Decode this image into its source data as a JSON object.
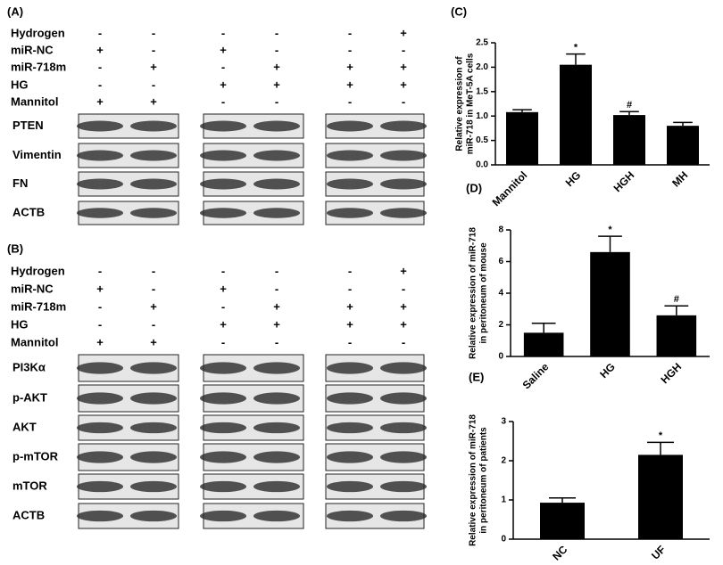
{
  "blots": [
    {
      "label": "(A)",
      "treatments": [
        {
          "name": "Hydrogen",
          "signs": [
            "-",
            "-",
            "-",
            "-",
            "-",
            "+"
          ]
        },
        {
          "name": "miR-NC",
          "signs": [
            "+",
            "-",
            "+",
            "-",
            "-",
            "-"
          ]
        },
        {
          "name": "miR-718m",
          "signs": [
            "-",
            "+",
            "-",
            "+",
            "+",
            "+"
          ]
        },
        {
          "name": "HG",
          "signs": [
            "-",
            "-",
            "+",
            "+",
            "+",
            "+"
          ]
        },
        {
          "name": "Mannitol",
          "signs": [
            "+",
            "+",
            "-",
            "-",
            "-",
            "-"
          ]
        }
      ],
      "proteins": [
        "PTEN",
        "Vimentin",
        "FN",
        "ACTB"
      ]
    },
    {
      "label": "(B)",
      "treatments": [
        {
          "name": "Hydrogen",
          "signs": [
            "-",
            "-",
            "-",
            "-",
            "-",
            "+"
          ]
        },
        {
          "name": "miR-NC",
          "signs": [
            "+",
            "-",
            "+",
            "-",
            "-",
            "-"
          ]
        },
        {
          "name": "miR-718m",
          "signs": [
            "-",
            "+",
            "-",
            "+",
            "+",
            "+"
          ]
        },
        {
          "name": "HG",
          "signs": [
            "-",
            "-",
            "+",
            "+",
            "+",
            "+"
          ]
        },
        {
          "name": "Mannitol",
          "signs": [
            "+",
            "+",
            "-",
            "-",
            "-",
            "-"
          ]
        }
      ],
      "proteins": [
        "PI3Kα",
        "p-AKT",
        "AKT",
        "p-mTOR",
        "mTOR",
        "ACTB"
      ]
    }
  ],
  "chart_data": [
    {
      "type": "bar",
      "panel": "(C)",
      "ylabel": [
        "Relative expression of",
        "miR-718 in MeT-5A cells"
      ],
      "categories": [
        "Mannitol",
        "HG",
        "HGH",
        "MH"
      ],
      "values": [
        1.08,
        2.05,
        1.02,
        0.8
      ],
      "errors": [
        0.05,
        0.22,
        0.07,
        0.07
      ],
      "significance": [
        null,
        "*",
        "#",
        null
      ],
      "color": "#000000",
      "ylim": [
        0,
        2.5
      ],
      "yticks": [
        {
          "value": 0,
          "label": "0.0"
        },
        {
          "value": 0.5,
          "label": "0.5"
        },
        {
          "value": 1,
          "label": "1.0"
        },
        {
          "value": 1.5,
          "label": "1.5"
        },
        {
          "value": 2,
          "label": "2.0"
        },
        {
          "value": 2.5,
          "label": "2.5"
        }
      ]
    },
    {
      "type": "bar",
      "panel": "(D)",
      "ylabel": [
        "Relative expression of miR-718",
        "in peritoneum of mouse"
      ],
      "categories": [
        "Saline",
        "HG",
        "HGH"
      ],
      "values": [
        1.5,
        6.6,
        2.6
      ],
      "errors": [
        0.6,
        1.0,
        0.6
      ],
      "significance": [
        null,
        "*",
        "#"
      ],
      "color": "#000000",
      "ylim": [
        0,
        8
      ],
      "yticks": [
        0,
        2,
        4,
        6,
        8
      ]
    },
    {
      "type": "bar",
      "panel": "(E)",
      "ylabel": [
        "Relative expression of miR-718",
        "in peritoneum of patients"
      ],
      "categories": [
        "NC",
        "UF"
      ],
      "values": [
        0.93,
        2.15
      ],
      "errors": [
        0.12,
        0.32
      ],
      "significance": [
        null,
        "*"
      ],
      "color": "#000000",
      "ylim": [
        0,
        3
      ],
      "yticks": [
        0,
        1,
        2,
        3
      ]
    }
  ]
}
